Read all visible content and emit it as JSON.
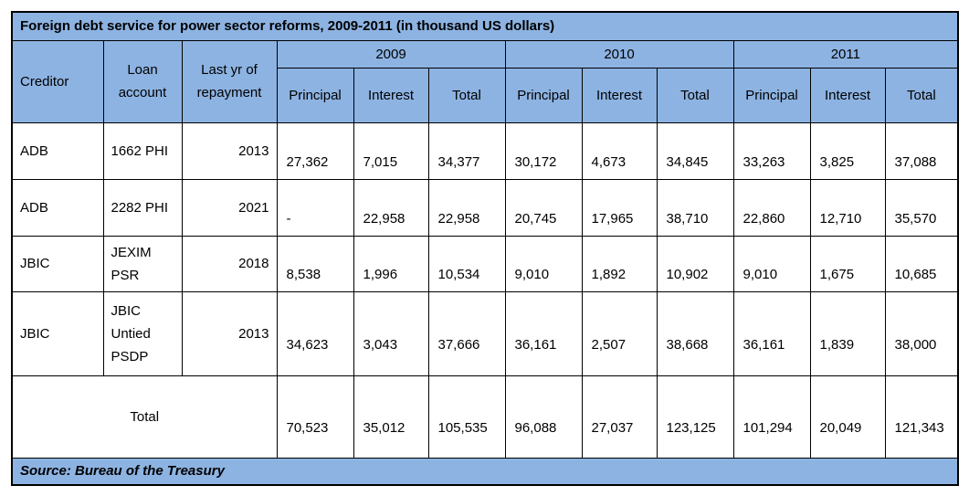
{
  "table": {
    "title": "Foreign debt service for power sector reforms, 2009-2011 (in thousand US dollars)",
    "headers": {
      "creditor": "Creditor",
      "loan": "Loan\naccount",
      "last_year": "Last yr of\nrepayment",
      "years": [
        {
          "year": "2009",
          "columns": [
            "Principal",
            "Interest",
            "Total"
          ]
        },
        {
          "year": "2010",
          "columns": [
            "Principal",
            "Interest",
            "Total"
          ]
        },
        {
          "year": "2011",
          "columns": [
            "Principal",
            "Interest",
            "Total"
          ]
        }
      ]
    },
    "rows": [
      {
        "creditor": "ADB",
        "loan": "1662 PHI",
        "last_year": "2013",
        "values": [
          "27,362",
          "7,015",
          "34,377",
          "30,172",
          "4,673",
          "34,845",
          "33,263",
          "3,825",
          "37,088"
        ]
      },
      {
        "creditor": "ADB",
        "loan": "2282 PHI",
        "last_year": "2021",
        "values": [
          "-",
          "22,958",
          "22,958",
          "20,745",
          "17,965",
          "38,710",
          "22,860",
          "12,710",
          "35,570"
        ]
      },
      {
        "creditor": "JBIC",
        "loan": "JEXIM\nPSR",
        "last_year": "2018",
        "values": [
          "8,538",
          "1,996",
          "10,534",
          "9,010",
          "1,892",
          "10,902",
          "9,010",
          "1,675",
          "10,685"
        ]
      },
      {
        "creditor": "JBIC",
        "loan": "JBIC\nUntied\nPSDP",
        "last_year": "2013",
        "values": [
          "34,623",
          "3,043",
          "37,666",
          "36,161",
          "2,507",
          "38,668",
          "36,161",
          "1,839",
          "38,000"
        ]
      }
    ],
    "total": {
      "label": "Total",
      "values": [
        "70,523",
        "35,012",
        "105,535",
        "96,088",
        "27,037",
        "123,125",
        "101,294",
        "20,049",
        "121,343"
      ]
    },
    "source": "Source: Bureau of the Treasury"
  }
}
